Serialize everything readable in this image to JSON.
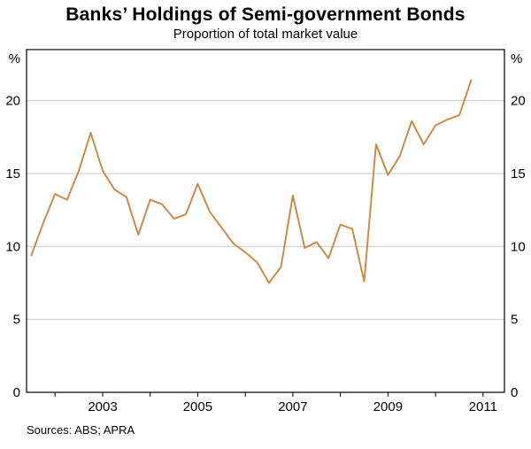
{
  "page": {
    "title": "Banks’ Holdings of Semi-government Bonds",
    "subtitle": "Proportion of total market value",
    "source_note": "Sources: ABS; APRA"
  },
  "chart_data": {
    "type": "line",
    "title": "Banks’ Holdings of Semi-government Bonds",
    "subtitle": "Proportion of total market value",
    "xlabel": "",
    "ylabel": "%",
    "unit_left": "%",
    "unit_right": "%",
    "xlim": [
      2001.4,
      2011.45
    ],
    "ylim": [
      0,
      23.5
    ],
    "yticks": [
      0,
      5,
      10,
      15,
      20
    ],
    "gridlines": [
      5,
      10,
      15,
      20
    ],
    "grid": "horizontal",
    "xtick_labels": [
      "2003",
      "2005",
      "2007",
      "2009",
      "2011"
    ],
    "xtick_positions": [
      2003,
      2005,
      2007,
      2009,
      2011
    ],
    "minor_xticks": [
      2002,
      2003,
      2004,
      2005,
      2006,
      2007,
      2008,
      2009,
      2010,
      2011
    ],
    "x": [
      2001.5,
      2001.75,
      2002.0,
      2002.25,
      2002.5,
      2002.75,
      2003.0,
      2003.25,
      2003.5,
      2003.75,
      2004.0,
      2004.25,
      2004.5,
      2004.75,
      2005.0,
      2005.25,
      2005.5,
      2005.75,
      2006.0,
      2006.25,
      2006.5,
      2006.75,
      2007.0,
      2007.25,
      2007.5,
      2007.75,
      2008.0,
      2008.25,
      2008.5,
      2008.75,
      2009.0,
      2009.25,
      2009.5,
      2009.75,
      2010.0,
      2010.25,
      2010.5,
      2010.75
    ],
    "series": [
      {
        "name": "Banks’ holdings of semi-government bonds",
        "color": "#cf8a45",
        "values": [
          9.4,
          11.6,
          13.6,
          13.2,
          15.2,
          17.8,
          15.2,
          13.9,
          13.4,
          10.8,
          13.2,
          12.9,
          11.9,
          12.2,
          14.3,
          12.4,
          11.3,
          10.2,
          9.6,
          8.9,
          7.5,
          8.6,
          13.5,
          9.9,
          10.3,
          9.2,
          11.5,
          11.2,
          7.6,
          17.0,
          14.9,
          16.2,
          18.6,
          17.0,
          18.3,
          18.7,
          19.0,
          21.4
        ]
      }
    ],
    "grid_color": "#c8c8c8",
    "axis_color": "#000000",
    "legend_position": "none",
    "source": "Sources: ABS; APRA"
  }
}
